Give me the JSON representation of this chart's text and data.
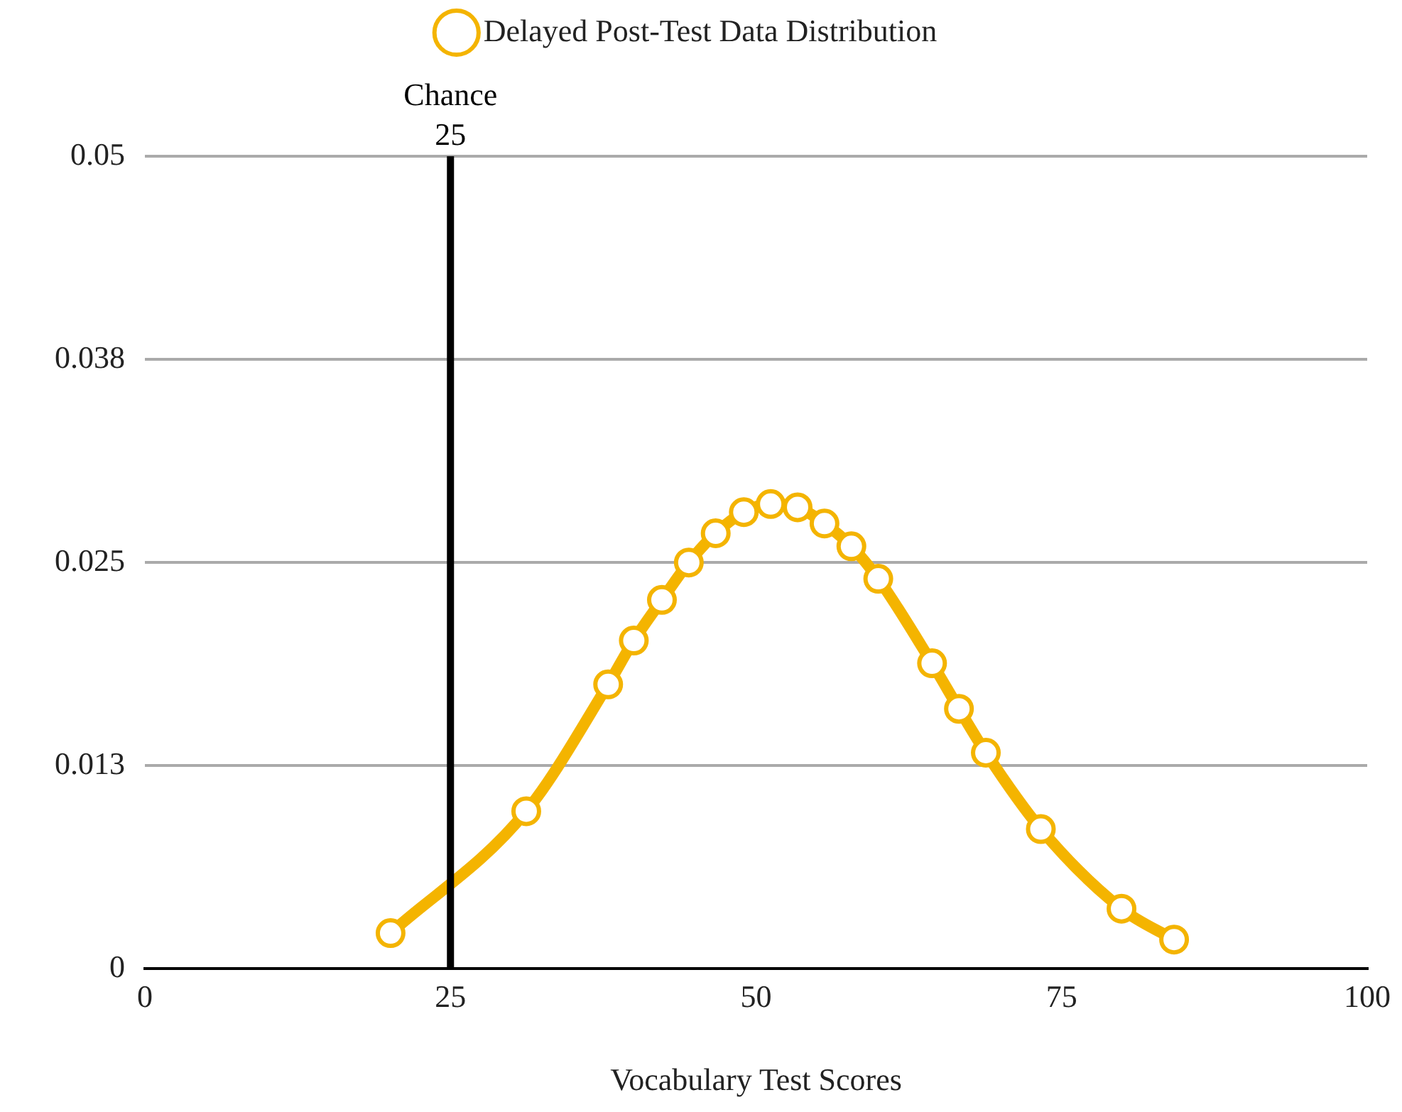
{
  "chart_data": {
    "type": "line",
    "xlabel": "Vocabulary Test Scores",
    "x": [
      20.1,
      31.2,
      37.9,
      40.0,
      42.3,
      44.5,
      46.7,
      49.0,
      51.2,
      53.4,
      55.6,
      57.8,
      60.0,
      64.4,
      66.6,
      68.8,
      73.3,
      79.9,
      84.2
    ],
    "series": [
      {
        "name": "Delayed Post-Test Data Distribution",
        "color": "#f4b400",
        "values": [
          0.0022,
          0.0097,
          0.0175,
          0.0202,
          0.0227,
          0.025,
          0.0268,
          0.0281,
          0.0286,
          0.0284,
          0.0274,
          0.026,
          0.024,
          0.0188,
          0.016,
          0.0133,
          0.0086,
          0.0037,
          0.0018
        ]
      }
    ],
    "xlim": [
      0,
      100
    ],
    "xticks": [
      0,
      25,
      50,
      75,
      100
    ],
    "ylim": [
      0,
      0.05
    ],
    "yticks": [
      0,
      {
        "value": 0.0125,
        "label": "0.013"
      },
      0.025,
      {
        "value": 0.0375,
        "label": "0.038"
      },
      0.05
    ],
    "ref_lines": [
      {
        "axis": "x",
        "value": 25,
        "label": "Chance\n25",
        "color": "#000000"
      }
    ],
    "grid": "y",
    "legend": "top",
    "marker": "circle",
    "line_style": "solid"
  }
}
